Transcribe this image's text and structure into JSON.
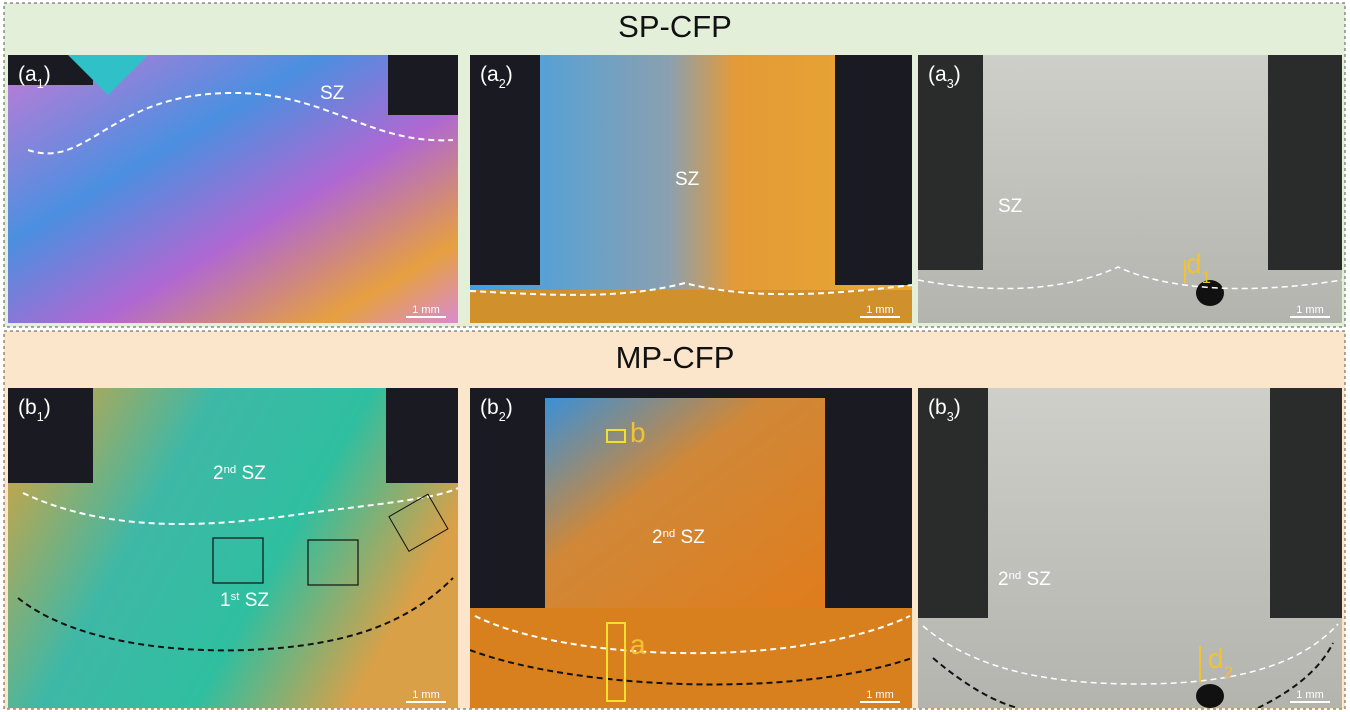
{
  "sections": [
    {
      "title": "SP-CFP",
      "panels": [
        {
          "label": [
            "(a",
            "1",
            ")"
          ],
          "annotations": [
            [
              "SZ"
            ]
          ],
          "scale_bar": "1 mm"
        },
        {
          "label": [
            "(a",
            "2",
            ")"
          ],
          "annotations": [
            [
              "SZ"
            ]
          ],
          "scale_bar": "1 mm"
        },
        {
          "label": [
            "(a",
            "3",
            ")"
          ],
          "annotations": [
            [
              "SZ"
            ],
            [
              "d",
              "1"
            ]
          ],
          "scale_bar": "1 mm"
        }
      ]
    },
    {
      "title": "MP-CFP",
      "panels": [
        {
          "label": [
            "(b",
            "1",
            ")"
          ],
          "annotations": [
            [
              "2",
              "nd",
              " SZ"
            ],
            [
              "1",
              "st",
              " SZ"
            ]
          ],
          "scale_bar": "1 mm"
        },
        {
          "label": [
            "(b",
            "2",
            ")"
          ],
          "annotations": [
            [
              "b"
            ],
            [
              "2",
              "nd",
              " SZ"
            ],
            [
              "a"
            ]
          ],
          "scale_bar": "1 mm"
        },
        {
          "label": [
            "(b",
            "3",
            ")"
          ],
          "annotations": [
            [
              "2",
              "nd",
              " SZ"
            ],
            [
              "d",
              "2"
            ]
          ],
          "scale_bar": "1 mm"
        }
      ]
    }
  ]
}
